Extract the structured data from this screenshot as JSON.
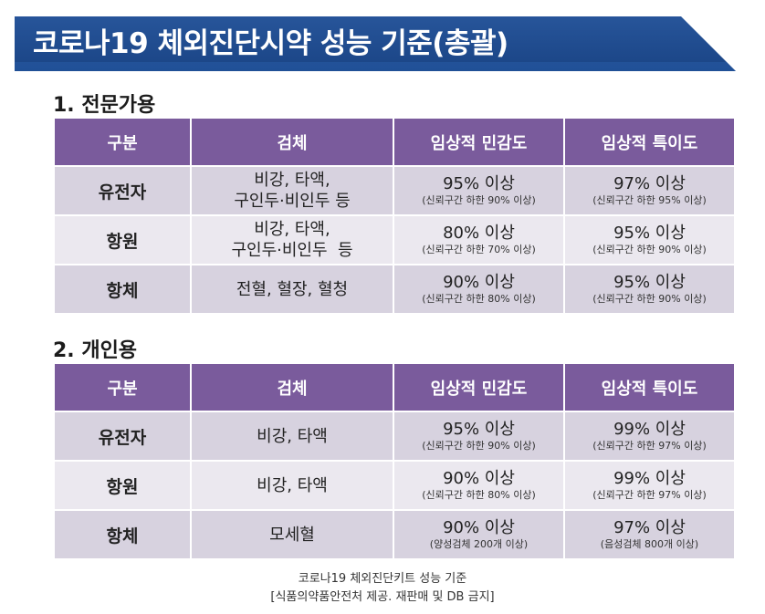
{
  "banner": {
    "title": "코로나19 체외진단시약 성능 기준(총괄)"
  },
  "sections": [
    {
      "title": "1. 전문가용",
      "headers": [
        "구분",
        "검체",
        "임상적 민감도",
        "임상적 특이도"
      ],
      "rows": [
        {
          "category": "유전자",
          "specimen": [
            "비강, 타액,",
            "구인두·비인두 등"
          ],
          "sensitivity": {
            "value": "95% 이상",
            "note": "(신뢰구간 하한 90% 이상)"
          },
          "specificity": {
            "value": "97% 이상",
            "note": "(신뢰구간 하한 95% 이상)"
          }
        },
        {
          "category": "항원",
          "specimen": [
            "비강, 타액,",
            "구인두·비인두  등"
          ],
          "sensitivity": {
            "value": "80% 이상",
            "note": "(신뢰구간 하한 70% 이상)"
          },
          "specificity": {
            "value": "95% 이상",
            "note": "(신뢰구간 하한 90% 이상)"
          }
        },
        {
          "category": "항체",
          "specimen": [
            "전혈, 혈장, 혈청"
          ],
          "sensitivity": {
            "value": "90% 이상",
            "note": "(신뢰구간 하한 80% 이상)"
          },
          "specificity": {
            "value": "95% 이상",
            "note": "(신뢰구간 하한 90% 이상)"
          }
        }
      ]
    },
    {
      "title": "2. 개인용",
      "headers": [
        "구분",
        "검체",
        "임상적 민감도",
        "임상적 특이도"
      ],
      "rows": [
        {
          "category": "유전자",
          "specimen": [
            "비강, 타액"
          ],
          "sensitivity": {
            "value": "95% 이상",
            "note": "(신뢰구간 하한 90% 이상)"
          },
          "specificity": {
            "value": "99% 이상",
            "note": "(신뢰구간 하한 97% 이상)"
          }
        },
        {
          "category": "항원",
          "specimen": [
            "비강, 타액"
          ],
          "sensitivity": {
            "value": "90% 이상",
            "note": "(신뢰구간 하한 80% 이상)"
          },
          "specificity": {
            "value": "99% 이상",
            "note": "(신뢰구간 하한 97% 이상)"
          }
        },
        {
          "category": "항체",
          "specimen": [
            "모세혈"
          ],
          "sensitivity": {
            "value": "90% 이상",
            "note": "(양성검체 200개 이상)"
          },
          "specificity": {
            "value": "97% 이상",
            "note": "(음성검체 800개 이상)"
          }
        }
      ]
    }
  ],
  "caption": {
    "line1": "코로나19 체외진단키트 성능 기준",
    "line2": "[식품의약품안전처 제공. 재판매 및 DB 금지]"
  }
}
